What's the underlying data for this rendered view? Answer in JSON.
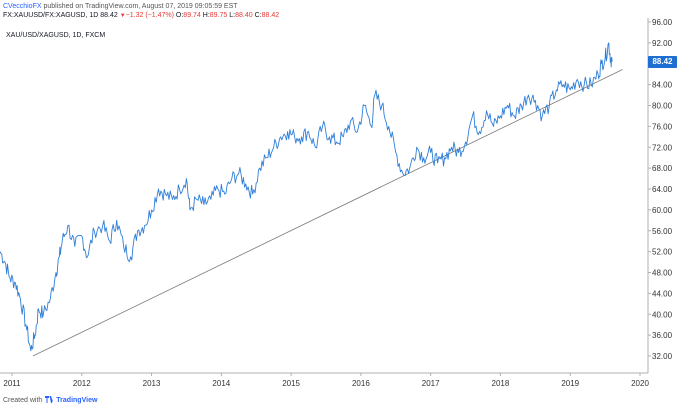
{
  "header": {
    "author": "CVecchioFX",
    "publish_text": "published on TradingView.com, August 07, 2019 09:05:59 EST",
    "symbol": "FX:XAUUSD/FX:XAGUSD, 1D",
    "price": "88.42",
    "change_arrow": "▼",
    "change": "−1.32 (−1.47%)",
    "o_label": "O:",
    "o_value": "89.74",
    "h_label": "H:",
    "h_value": "89.75",
    "l_label": "L:",
    "l_value": "88.40",
    "c_label": "C:",
    "c_value": "88.42"
  },
  "legend": "XAU/USD/XAGUSD, 1D, FXCM",
  "last_price_badge": "88.42",
  "footer": {
    "prefix": "Created with",
    "brand": "TradingView"
  },
  "colors": {
    "series": "#2f7fd8",
    "trendline": "#7a7a7a",
    "badge": "#1e6fd1",
    "down": "#e53935"
  },
  "chart_data": {
    "type": "line",
    "y_ticks": [
      "96.00",
      "92.00",
      "88.00",
      "84.00",
      "80.00",
      "76.00",
      "72.00",
      "68.00",
      "64.00",
      "60.00",
      "56.00",
      "52.00",
      "48.00",
      "44.00",
      "40.00",
      "36.00",
      "32.00"
    ],
    "x_ticks": [
      "2011",
      "2012",
      "2013",
      "2014",
      "2015",
      "2016",
      "2017",
      "2018",
      "2019",
      "2020"
    ],
    "ylim": [
      30,
      96
    ],
    "series": [
      {
        "x": [
          2010.83,
          2010.9,
          2010.97,
          2011.05,
          2011.12,
          2011.2,
          2011.27,
          2011.33,
          2011.38,
          2011.45,
          2011.55,
          2011.63,
          2011.68,
          2011.72,
          2011.8,
          2011.9,
          2012.0,
          2012.08,
          2012.18,
          2012.3,
          2012.4,
          2012.5,
          2012.6,
          2012.7,
          2012.8,
          2012.9,
          2013.0,
          2013.1,
          2013.2,
          2013.3,
          2013.4,
          2013.5,
          2013.55,
          2013.65,
          2013.75,
          2013.85,
          2013.95,
          2014.05,
          2014.15,
          2014.25,
          2014.35,
          2014.45,
          2014.55,
          2014.65,
          2014.75,
          2014.85,
          2014.95,
          2015.05,
          2015.15,
          2015.25,
          2015.35,
          2015.45,
          2015.55,
          2015.65,
          2015.75,
          2015.85,
          2015.95,
          2016.05,
          2016.15,
          2016.2,
          2016.3,
          2016.4,
          2016.5,
          2016.6,
          2016.7,
          2016.8,
          2016.9,
          2017.0,
          2017.1,
          2017.2,
          2017.3,
          2017.4,
          2017.5,
          2017.6,
          2017.7,
          2017.8,
          2017.9,
          2018.0,
          2018.1,
          2018.2,
          2018.3,
          2018.4,
          2018.5,
          2018.6,
          2018.7,
          2018.8,
          2018.9,
          2019.0,
          2019.1,
          2019.2,
          2019.3,
          2019.4,
          2019.45,
          2019.5,
          2019.55,
          2019.58,
          2019.6
        ],
        "y": [
          52,
          50,
          47,
          46,
          43,
          38,
          33,
          36,
          41,
          40,
          43,
          48,
          51,
          54,
          57,
          53,
          55,
          51,
          56,
          57,
          54,
          58,
          53,
          51,
          56,
          57,
          60,
          64,
          63,
          62,
          64,
          66,
          60,
          62,
          61,
          62,
          64,
          63,
          66,
          67,
          65,
          63,
          68,
          70,
          72,
          74,
          75,
          74,
          74,
          75,
          72,
          76,
          74,
          73,
          74,
          77,
          75,
          80,
          76,
          82,
          80,
          76,
          71,
          67,
          68,
          72,
          70,
          71,
          69,
          70,
          72,
          71,
          73,
          78,
          75,
          79,
          76,
          78,
          80,
          78,
          80,
          82,
          81,
          78,
          80,
          83,
          84,
          83,
          85,
          84,
          84,
          86,
          88,
          89,
          92,
          89,
          88.42
        ]
      }
    ],
    "trendline": {
      "x": [
        2011.3,
        2019.75
      ],
      "y": [
        32,
        86.9
      ]
    },
    "last_value": 88.42
  }
}
